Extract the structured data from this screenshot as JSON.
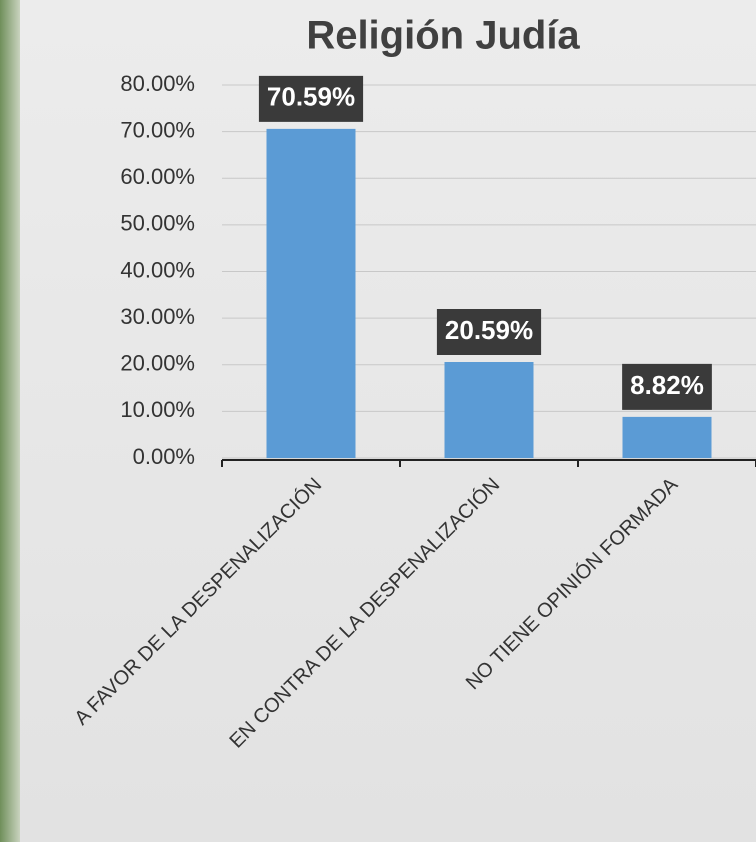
{
  "chart_data": {
    "type": "bar",
    "title": "Religión Judía",
    "categories": [
      "A FAVOR DE LA DESPENALIZACIÓN",
      "EN CONTRA DE LA DESPENALIZACIÓN",
      "NO TIENE OPINIÓN FORMADA"
    ],
    "values": [
      70.59,
      20.59,
      8.82
    ],
    "value_labels": [
      "70.59%",
      "20.59%",
      "8.82%"
    ],
    "color": "#5b9bd5",
    "ylim": [
      0,
      80
    ],
    "yticks": [
      {
        "value": 0,
        "label": "0.00%"
      },
      {
        "value": 10,
        "label": "10.00%"
      },
      {
        "value": 20,
        "label": "20.00%"
      },
      {
        "value": 30,
        "label": "30.00%"
      },
      {
        "value": 40,
        "label": "40.00%"
      },
      {
        "value": 50,
        "label": "50.00%"
      },
      {
        "value": 60,
        "label": "60.00%"
      },
      {
        "value": 70,
        "label": "70.00%"
      },
      {
        "value": 80,
        "label": "80.00%"
      }
    ],
    "grid": true
  }
}
